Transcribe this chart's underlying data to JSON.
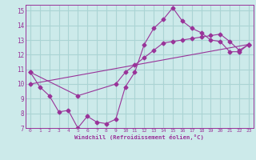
{
  "xlabel": "Windchill (Refroidissement éolien,°C)",
  "bg_color": "#cceaea",
  "grid_color": "#aad4d4",
  "line_color": "#993399",
  "xlim": [
    -0.5,
    23.5
  ],
  "ylim": [
    7,
    15.4
  ],
  "xticks": [
    0,
    1,
    2,
    3,
    4,
    5,
    6,
    7,
    8,
    9,
    10,
    11,
    12,
    13,
    14,
    15,
    16,
    17,
    18,
    19,
    20,
    21,
    22,
    23
  ],
  "yticks": [
    7,
    8,
    9,
    10,
    11,
    12,
    13,
    14,
    15
  ],
  "line1_x": [
    0,
    1,
    2,
    3,
    4,
    5,
    6,
    7,
    8,
    9,
    10,
    11,
    12,
    13,
    14,
    15,
    16,
    17,
    18,
    19,
    20,
    21,
    22,
    23
  ],
  "line1_y": [
    10.8,
    9.8,
    9.2,
    8.1,
    8.2,
    7.0,
    7.8,
    7.4,
    7.3,
    7.6,
    9.8,
    10.8,
    12.7,
    13.8,
    14.4,
    15.2,
    14.3,
    13.8,
    13.5,
    13.0,
    12.9,
    12.2,
    12.2,
    12.7
  ],
  "line2_x": [
    0,
    23
  ],
  "line2_y": [
    10.0,
    12.7
  ],
  "line3_x": [
    0,
    5,
    9,
    10,
    11,
    12,
    13,
    14,
    15,
    16,
    17,
    18,
    19,
    20,
    21,
    22,
    23
  ],
  "line3_y": [
    10.8,
    9.2,
    10.0,
    10.8,
    11.3,
    11.8,
    12.3,
    12.8,
    12.9,
    13.0,
    13.1,
    13.2,
    13.3,
    13.4,
    12.9,
    12.3,
    12.7
  ]
}
